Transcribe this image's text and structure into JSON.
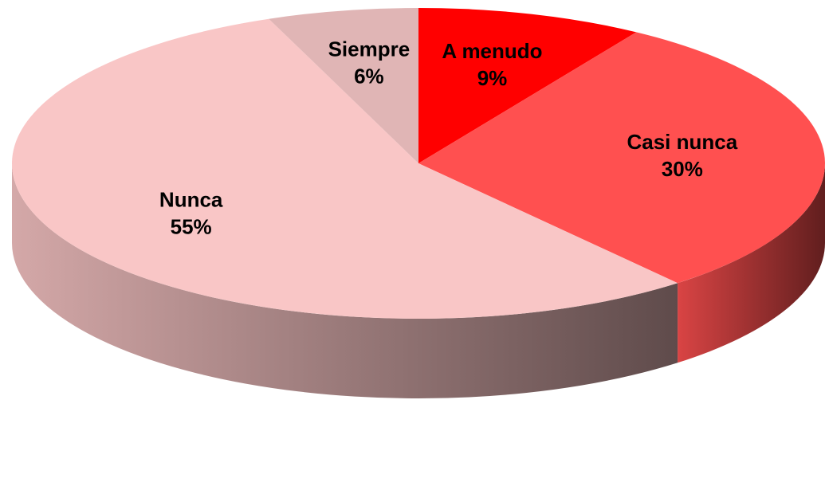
{
  "chart_data": {
    "type": "pie",
    "categories": [
      "A menudo",
      "Casi nunca",
      "Nunca",
      "Siempre"
    ],
    "values": [
      9,
      30,
      55,
      6
    ],
    "value_labels": [
      "9%",
      "30%",
      "55%",
      "6%"
    ],
    "colors": [
      "#ff0000",
      "#ff5050",
      "#f9c6c6",
      "#e0b5b5"
    ]
  }
}
